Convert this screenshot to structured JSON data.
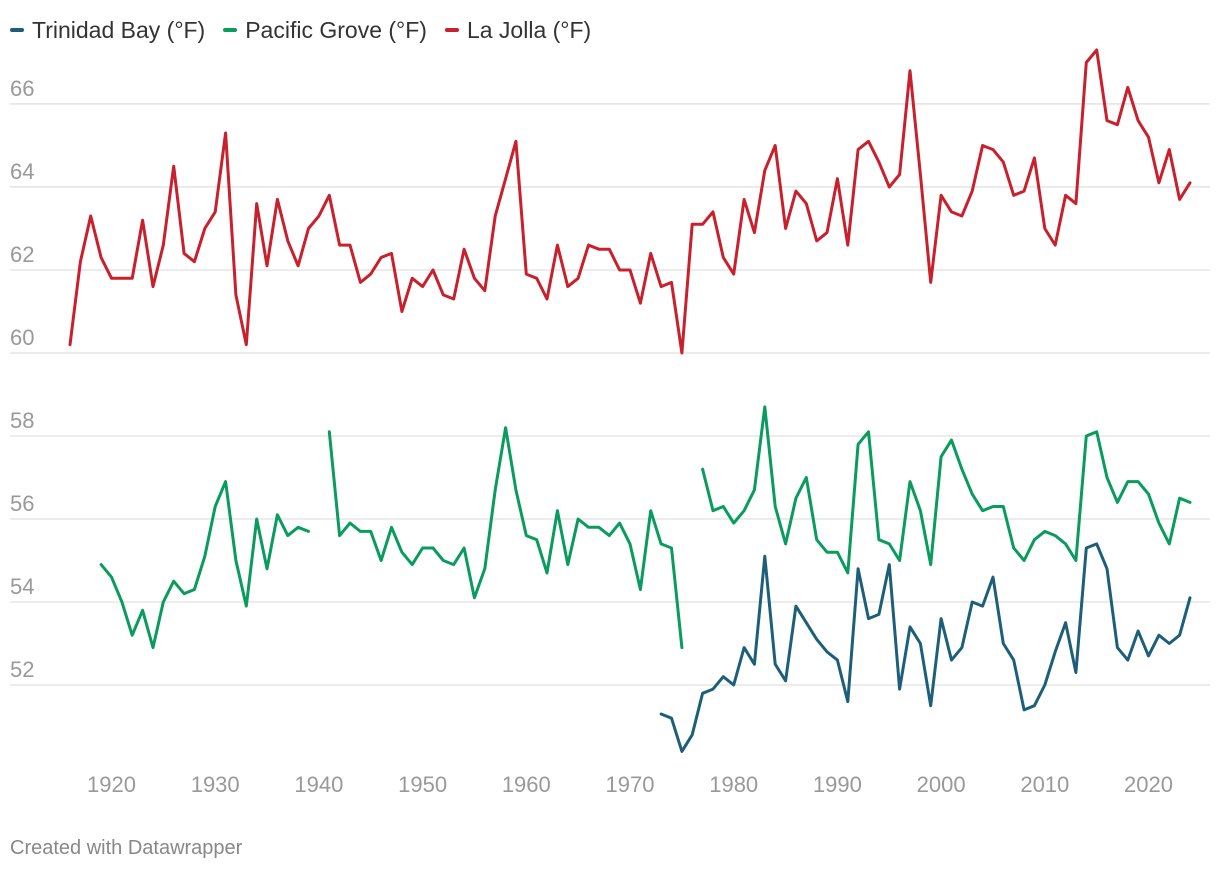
{
  "footer": "Created with Datawrapper",
  "chart_data": {
    "type": "line",
    "title": "",
    "xlabel": "",
    "ylabel": "",
    "xlim": [
      1916,
      2024
    ],
    "ylim": [
      50,
      67.3
    ],
    "y_ticks": [
      52,
      54,
      56,
      58,
      60,
      62,
      64,
      66
    ],
    "x_ticks": [
      1920,
      1930,
      1940,
      1950,
      1960,
      1970,
      1980,
      1990,
      2000,
      2010,
      2020
    ],
    "grid": "horizontal",
    "legend_position": "top-left",
    "series": [
      {
        "name": "Trinidad Bay (°F)",
        "color": "#1d5f7a",
        "points": [
          [
            1973,
            51.3
          ],
          [
            1974,
            51.2
          ],
          [
            1975,
            50.4
          ],
          [
            1976,
            50.8
          ],
          [
            1977,
            51.8
          ],
          [
            1978,
            51.9
          ],
          [
            1979,
            52.2
          ],
          [
            1980,
            52.0
          ],
          [
            1981,
            52.9
          ],
          [
            1982,
            52.5
          ],
          [
            1983,
            55.1
          ],
          [
            1984,
            52.5
          ],
          [
            1985,
            52.1
          ],
          [
            1986,
            53.9
          ],
          [
            1987,
            53.5
          ],
          [
            1988,
            53.1
          ],
          [
            1989,
            52.8
          ],
          [
            1990,
            52.6
          ],
          [
            1991,
            51.6
          ],
          [
            1992,
            54.8
          ],
          [
            1993,
            53.6
          ],
          [
            1994,
            53.7
          ],
          [
            1995,
            54.9
          ],
          [
            1996,
            51.9
          ],
          [
            1997,
            53.4
          ],
          [
            1998,
            53.0
          ],
          [
            1999,
            51.5
          ],
          [
            2000,
            53.6
          ],
          [
            2001,
            52.6
          ],
          [
            2002,
            52.9
          ],
          [
            2003,
            54.0
          ],
          [
            2004,
            53.9
          ],
          [
            2005,
            54.6
          ],
          [
            2006,
            53.0
          ],
          [
            2007,
            52.6
          ],
          [
            2008,
            51.4
          ],
          [
            2009,
            51.5
          ],
          [
            2010,
            52.0
          ],
          [
            2011,
            52.8
          ],
          [
            2012,
            53.5
          ],
          [
            2013,
            52.3
          ],
          [
            2014,
            55.3
          ],
          [
            2015,
            55.4
          ],
          [
            2016,
            54.8
          ],
          [
            2017,
            52.9
          ],
          [
            2018,
            52.6
          ],
          [
            2019,
            53.3
          ],
          [
            2020,
            52.7
          ],
          [
            2021,
            53.2
          ],
          [
            2022,
            53.0
          ],
          [
            2023,
            53.2
          ],
          [
            2024,
            54.1
          ]
        ]
      },
      {
        "name": "Pacific Grove (°F)",
        "color": "#0a9b5e",
        "points": [
          [
            1919,
            54.9
          ],
          [
            1920,
            54.6
          ],
          [
            1921,
            54.0
          ],
          [
            1922,
            53.2
          ],
          [
            1923,
            53.8
          ],
          [
            1924,
            52.9
          ],
          [
            1925,
            54.0
          ],
          [
            1926,
            54.5
          ],
          [
            1927,
            54.2
          ],
          [
            1928,
            54.3
          ],
          [
            1929,
            55.1
          ],
          [
            1930,
            56.3
          ],
          [
            1931,
            56.9
          ],
          [
            1932,
            55.0
          ],
          [
            1933,
            53.9
          ],
          [
            1934,
            56.0
          ],
          [
            1935,
            54.8
          ],
          [
            1936,
            56.1
          ],
          [
            1937,
            55.6
          ],
          [
            1938,
            55.8
          ],
          [
            1939,
            55.7
          ],
          null,
          [
            1941,
            58.1
          ],
          [
            1942,
            55.6
          ],
          [
            1943,
            55.9
          ],
          [
            1944,
            55.7
          ],
          [
            1945,
            55.7
          ],
          [
            1946,
            55.0
          ],
          [
            1947,
            55.8
          ],
          [
            1948,
            55.2
          ],
          [
            1949,
            54.9
          ],
          [
            1950,
            55.3
          ],
          [
            1951,
            55.3
          ],
          [
            1952,
            55.0
          ],
          [
            1953,
            54.9
          ],
          [
            1954,
            55.3
          ],
          [
            1955,
            54.1
          ],
          [
            1956,
            54.8
          ],
          [
            1957,
            56.7
          ],
          [
            1958,
            58.2
          ],
          [
            1959,
            56.7
          ],
          [
            1960,
            55.6
          ],
          [
            1961,
            55.5
          ],
          [
            1962,
            54.7
          ],
          [
            1963,
            56.2
          ],
          [
            1964,
            54.9
          ],
          [
            1965,
            56.0
          ],
          [
            1966,
            55.8
          ],
          [
            1967,
            55.8
          ],
          [
            1968,
            55.6
          ],
          [
            1969,
            55.9
          ],
          [
            1970,
            55.4
          ],
          [
            1971,
            54.3
          ],
          [
            1972,
            56.2
          ],
          [
            1973,
            55.4
          ],
          [
            1974,
            55.3
          ],
          [
            1975,
            52.9
          ],
          null,
          [
            1977,
            57.2
          ],
          [
            1978,
            56.2
          ],
          [
            1979,
            56.3
          ],
          [
            1980,
            55.9
          ],
          [
            1981,
            56.2
          ],
          [
            1982,
            56.7
          ],
          [
            1983,
            58.7
          ],
          [
            1984,
            56.3
          ],
          [
            1985,
            55.4
          ],
          [
            1986,
            56.5
          ],
          [
            1987,
            57.0
          ],
          [
            1988,
            55.5
          ],
          [
            1989,
            55.2
          ],
          [
            1990,
            55.2
          ],
          [
            1991,
            54.7
          ],
          [
            1992,
            57.8
          ],
          [
            1993,
            58.1
          ],
          [
            1994,
            55.5
          ],
          [
            1995,
            55.4
          ],
          [
            1996,
            55.0
          ],
          [
            1997,
            56.9
          ],
          [
            1998,
            56.2
          ],
          [
            1999,
            54.9
          ],
          [
            2000,
            57.5
          ],
          [
            2001,
            57.9
          ],
          [
            2002,
            57.2
          ],
          [
            2003,
            56.6
          ],
          [
            2004,
            56.2
          ],
          [
            2005,
            56.3
          ],
          [
            2006,
            56.3
          ],
          [
            2007,
            55.3
          ],
          [
            2008,
            55.0
          ],
          [
            2009,
            55.5
          ],
          [
            2010,
            55.7
          ],
          [
            2011,
            55.6
          ],
          [
            2012,
            55.4
          ],
          [
            2013,
            55.0
          ],
          [
            2014,
            58.0
          ],
          [
            2015,
            58.1
          ],
          [
            2016,
            57.0
          ],
          [
            2017,
            56.4
          ],
          [
            2018,
            56.9
          ],
          [
            2019,
            56.9
          ],
          [
            2020,
            56.6
          ],
          [
            2021,
            55.9
          ],
          [
            2022,
            55.4
          ],
          [
            2023,
            56.5
          ],
          [
            2024,
            56.4
          ]
        ]
      },
      {
        "name": "La Jolla (°F)",
        "color": "#c8202c",
        "points": [
          [
            1916,
            60.2
          ],
          [
            1917,
            62.2
          ],
          [
            1918,
            63.3
          ],
          [
            1919,
            62.3
          ],
          [
            1920,
            61.8
          ],
          [
            1921,
            61.8
          ],
          [
            1922,
            61.8
          ],
          [
            1923,
            63.2
          ],
          [
            1924,
            61.6
          ],
          [
            1925,
            62.6
          ],
          [
            1926,
            64.5
          ],
          [
            1927,
            62.4
          ],
          [
            1928,
            62.2
          ],
          [
            1929,
            63.0
          ],
          [
            1930,
            63.4
          ],
          [
            1931,
            65.3
          ],
          [
            1932,
            61.4
          ],
          [
            1933,
            60.2
          ],
          [
            1934,
            63.6
          ],
          [
            1935,
            62.1
          ],
          [
            1936,
            63.7
          ],
          [
            1937,
            62.7
          ],
          [
            1938,
            62.1
          ],
          [
            1939,
            63.0
          ],
          [
            1940,
            63.3
          ],
          [
            1941,
            63.8
          ],
          [
            1942,
            62.6
          ],
          [
            1943,
            62.6
          ],
          [
            1944,
            61.7
          ],
          [
            1945,
            61.9
          ],
          [
            1946,
            62.3
          ],
          [
            1947,
            62.4
          ],
          [
            1948,
            61.0
          ],
          [
            1949,
            61.8
          ],
          [
            1950,
            61.6
          ],
          [
            1951,
            62.0
          ],
          [
            1952,
            61.4
          ],
          [
            1953,
            61.3
          ],
          [
            1954,
            62.5
          ],
          [
            1955,
            61.8
          ],
          [
            1956,
            61.5
          ],
          [
            1957,
            63.3
          ],
          [
            1958,
            64.2
          ],
          [
            1959,
            65.1
          ],
          [
            1960,
            61.9
          ],
          [
            1961,
            61.8
          ],
          [
            1962,
            61.3
          ],
          [
            1963,
            62.6
          ],
          [
            1964,
            61.6
          ],
          [
            1965,
            61.8
          ],
          [
            1966,
            62.6
          ],
          [
            1967,
            62.5
          ],
          [
            1968,
            62.5
          ],
          [
            1969,
            62.0
          ],
          [
            1970,
            62.0
          ],
          [
            1971,
            61.2
          ],
          [
            1972,
            62.4
          ],
          [
            1973,
            61.6
          ],
          [
            1974,
            61.7
          ],
          [
            1975,
            60.0
          ],
          [
            1976,
            63.1
          ],
          [
            1977,
            63.1
          ],
          [
            1978,
            63.4
          ],
          [
            1979,
            62.3
          ],
          [
            1980,
            61.9
          ],
          [
            1981,
            63.7
          ],
          [
            1982,
            62.9
          ],
          [
            1983,
            64.4
          ],
          [
            1984,
            65.0
          ],
          [
            1985,
            63.0
          ],
          [
            1986,
            63.9
          ],
          [
            1987,
            63.6
          ],
          [
            1988,
            62.7
          ],
          [
            1989,
            62.9
          ],
          [
            1990,
            64.2
          ],
          [
            1991,
            62.6
          ],
          [
            1992,
            64.9
          ],
          [
            1993,
            65.1
          ],
          [
            1994,
            64.6
          ],
          [
            1995,
            64.0
          ],
          [
            1996,
            64.3
          ],
          [
            1997,
            66.8
          ],
          [
            1998,
            64.3
          ],
          [
            1999,
            61.7
          ],
          [
            2000,
            63.8
          ],
          [
            2001,
            63.4
          ],
          [
            2002,
            63.3
          ],
          [
            2003,
            63.9
          ],
          [
            2004,
            65.0
          ],
          [
            2005,
            64.9
          ],
          [
            2006,
            64.6
          ],
          [
            2007,
            63.8
          ],
          [
            2008,
            63.9
          ],
          [
            2009,
            64.7
          ],
          [
            2010,
            63.0
          ],
          [
            2011,
            62.6
          ],
          [
            2012,
            63.8
          ],
          [
            2013,
            63.6
          ],
          [
            2014,
            67.0
          ],
          [
            2015,
            67.3
          ],
          [
            2016,
            65.6
          ],
          [
            2017,
            65.5
          ],
          [
            2018,
            66.4
          ],
          [
            2019,
            65.6
          ],
          [
            2020,
            65.2
          ],
          [
            2021,
            64.1
          ],
          [
            2022,
            64.9
          ],
          [
            2023,
            63.7
          ],
          [
            2024,
            64.1
          ]
        ]
      }
    ]
  }
}
